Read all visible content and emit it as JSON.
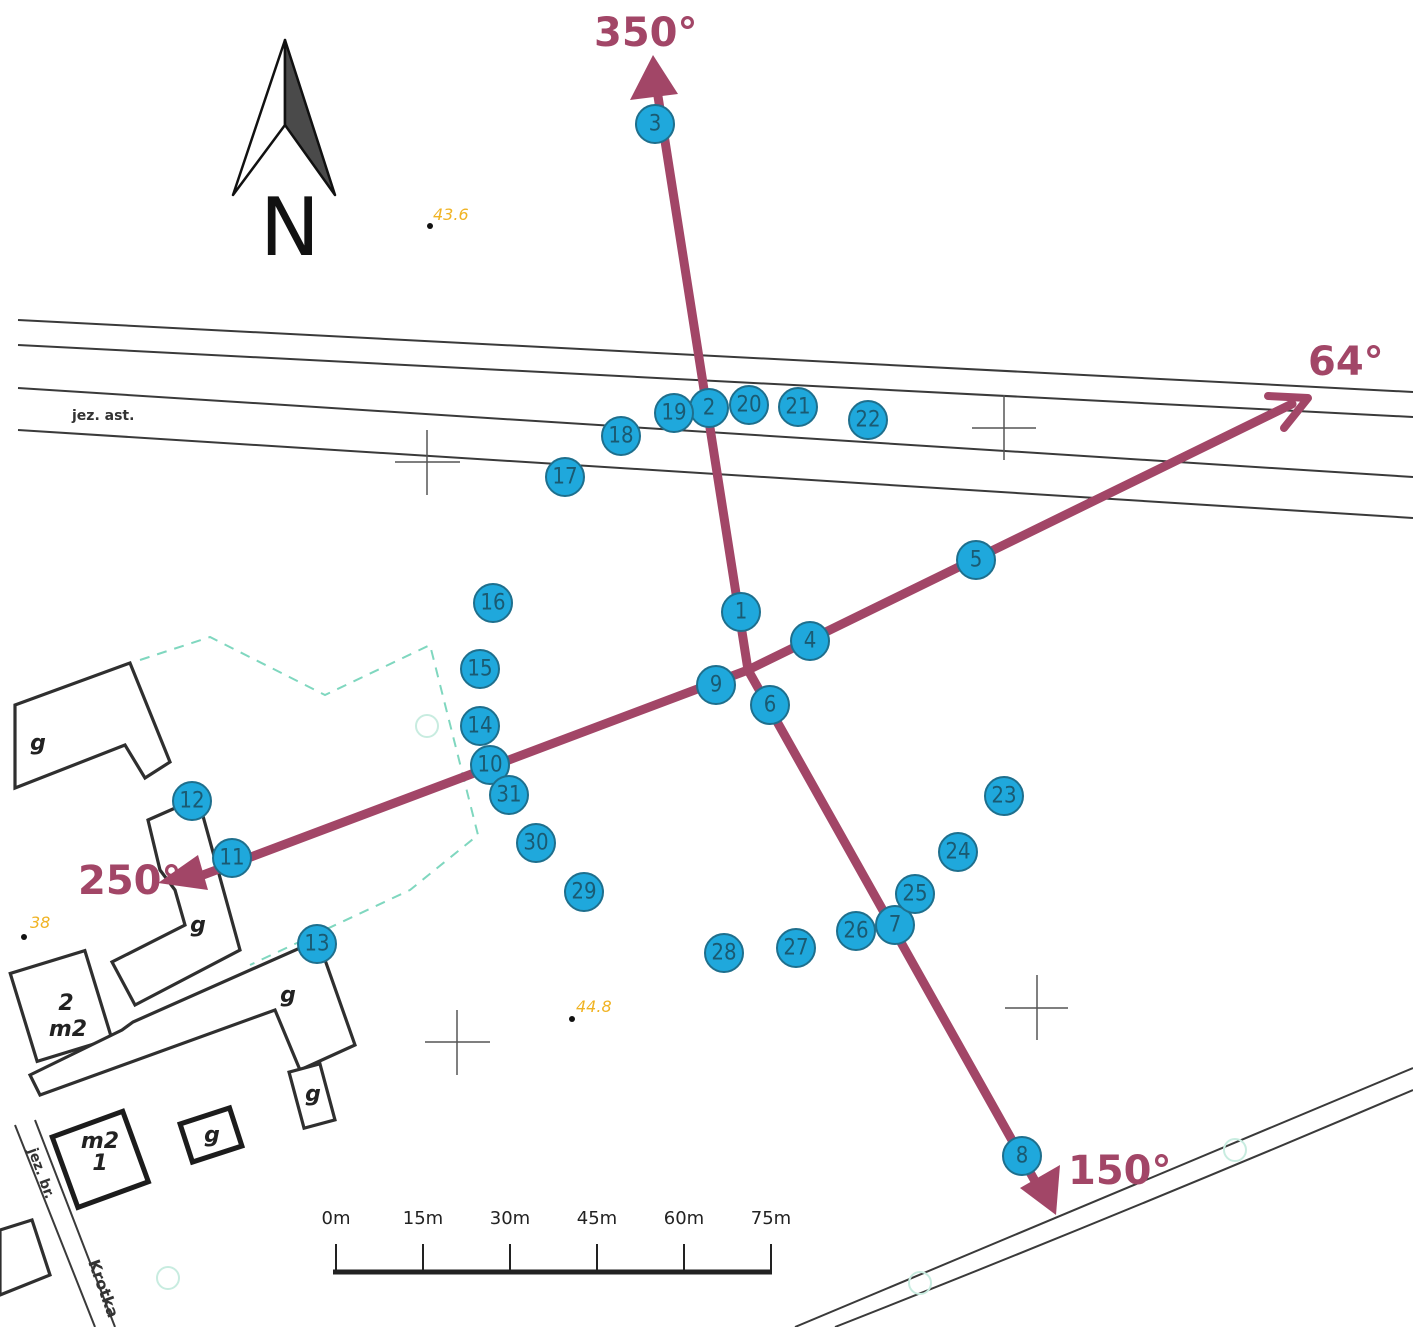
{
  "north": {
    "label": "N"
  },
  "bearings": [
    {
      "label": "350°"
    },
    {
      "label": "64°"
    },
    {
      "label": "150°"
    },
    {
      "label": "250°"
    }
  ],
  "points": [
    "1",
    "2",
    "3",
    "4",
    "5",
    "6",
    "7",
    "8",
    "9",
    "10",
    "11",
    "12",
    "13",
    "14",
    "15",
    "16",
    "17",
    "18",
    "19",
    "20",
    "21",
    "22",
    "23",
    "24",
    "25",
    "26",
    "27",
    "28",
    "29",
    "30",
    "31"
  ],
  "street_labels": {
    "road_top": "jez. ast.",
    "road_bottom_left": "jez. br.",
    "street_name": "Krotka"
  },
  "buildings": [
    {
      "label": "g"
    },
    {
      "label": "g"
    },
    {
      "label": "2"
    },
    {
      "label": "m2"
    },
    {
      "label": "g"
    },
    {
      "label": "g"
    },
    {
      "label": "m2"
    },
    {
      "label": "1"
    },
    {
      "label": "g"
    }
  ],
  "elevations": [
    "43.6",
    "38",
    "44.8"
  ],
  "scale_bar": {
    "ticks": [
      "0m",
      "15m",
      "30m",
      "45m",
      "60m",
      "75m"
    ]
  },
  "colors": {
    "points": "#1fa8dc",
    "arrows": "#a24667",
    "parcel": "#7fd7bf",
    "elevation": "#f0b323"
  }
}
